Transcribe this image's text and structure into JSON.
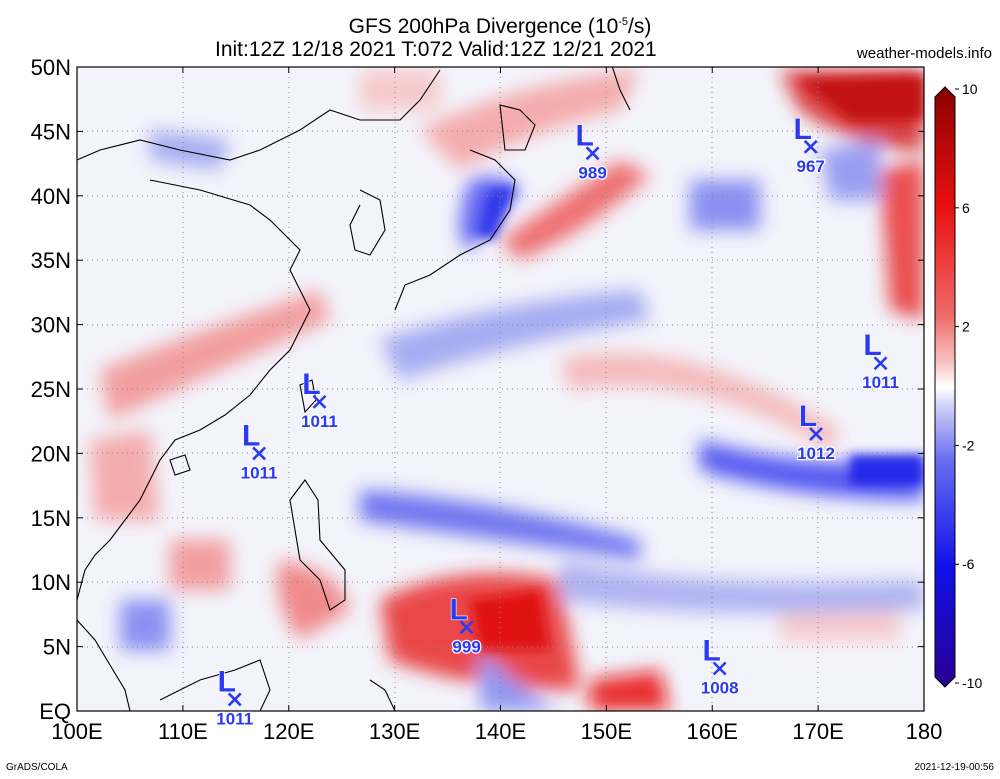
{
  "title": {
    "line1_prefix": "GFS 200hPa Divergence (10",
    "line1_sup": "-5",
    "line1_suffix": "/s)",
    "line2": "Init:12Z 12/18 2021  T:072  Valid:12Z 12/21 2021"
  },
  "site_credit": "weather-models.info",
  "footer": {
    "left": "GrADS/COLA",
    "right": "2021-12-19-00:56"
  },
  "map": {
    "lon_labels": [
      "100E",
      "110E",
      "120E",
      "130E",
      "140E",
      "150E",
      "160E",
      "170E",
      "180"
    ],
    "lat_labels": [
      "50N",
      "45N",
      "40N",
      "35N",
      "30N",
      "25N",
      "20N",
      "15N",
      "10N",
      "5N",
      "EQ"
    ],
    "lon_range": [
      100,
      180
    ],
    "lat_range": [
      0,
      50
    ],
    "grid": true
  },
  "colorbar": {
    "ticks": [
      "10",
      "6",
      "2",
      "-2",
      "-6",
      "-10"
    ],
    "colors_high": [
      "#8b0000",
      "#e81010",
      "#f06a6a",
      "#f7c3c3"
    ],
    "color_mid": "#ffffff",
    "colors_low": [
      "#c4c8f5",
      "#6a6ef0",
      "#1010e8",
      "#2a0090"
    ]
  },
  "pressure_lows": [
    {
      "symbol": "L",
      "value": "989",
      "lon": 148.7,
      "lat": 43.3
    },
    {
      "symbol": "L",
      "value": "967",
      "lon": 169.3,
      "lat": 43.8
    },
    {
      "symbol": "L",
      "value": "1011",
      "lon": 175.9,
      "lat": 27.0
    },
    {
      "symbol": "L",
      "value": "1012",
      "lon": 169.8,
      "lat": 21.5
    },
    {
      "symbol": "L",
      "value": "1011",
      "lon": 122.9,
      "lat": 24.0
    },
    {
      "symbol": "L",
      "value": "1011",
      "lon": 117.2,
      "lat": 20.0
    },
    {
      "symbol": "L",
      "value": "999",
      "lon": 136.8,
      "lat": 6.5
    },
    {
      "symbol": "L",
      "value": "1008",
      "lon": 160.7,
      "lat": 3.3
    },
    {
      "symbol": "L",
      "value": "1011",
      "lon": 114.9,
      "lat": 0.9
    }
  ]
}
